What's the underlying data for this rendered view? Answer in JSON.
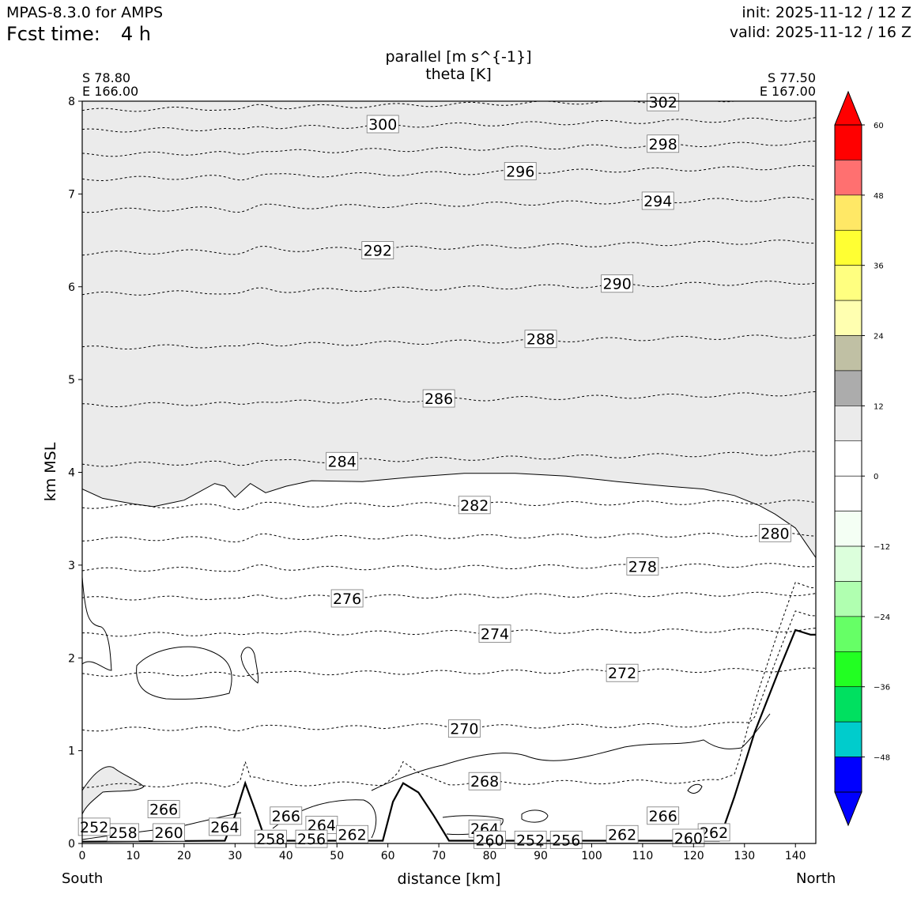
{
  "header": {
    "model": "MPAS-8.3.0 for AMPS",
    "fcst_label": "Fcst time:",
    "fcst_value": "4 h",
    "init": "init: 2025-11-12 / 12 Z",
    "valid": "valid: 2025-11-12 / 16 Z"
  },
  "endpoints": {
    "left_lat": "S 78.80",
    "left_lon": "E 166.00",
    "right_lat": "S 77.50",
    "right_lon": "E 167.00",
    "left_dir": "South",
    "right_dir": "North"
  },
  "chart_data": {
    "type": "contour",
    "title": "parallel [m s^{-1}]",
    "subtitle": "theta [K]",
    "xlabel": "distance [km]",
    "ylabel": "km MSL",
    "xlim": [
      0,
      144
    ],
    "ylim": [
      0,
      8
    ],
    "x_ticks": [
      0,
      10,
      20,
      30,
      40,
      50,
      60,
      70,
      80,
      90,
      100,
      110,
      120,
      130,
      140
    ],
    "y_ticks": [
      0,
      1,
      2,
      3,
      4,
      5,
      6,
      7,
      8
    ],
    "shaded_field": "parallel wind",
    "shaded_color": "#ebebeb",
    "terrain_km": [
      [
        0,
        0.02
      ],
      [
        28,
        0.03
      ],
      [
        30,
        0.3
      ],
      [
        32,
        0.65
      ],
      [
        34,
        0.35
      ],
      [
        36,
        0.03
      ],
      [
        59,
        0.03
      ],
      [
        61,
        0.45
      ],
      [
        63,
        0.65
      ],
      [
        66,
        0.55
      ],
      [
        69,
        0.3
      ],
      [
        72,
        0.03
      ],
      [
        125,
        0.03
      ],
      [
        128,
        0.5
      ],
      [
        132,
        1.2
      ],
      [
        137,
        1.9
      ],
      [
        140,
        2.3
      ],
      [
        143,
        2.25
      ]
    ],
    "zero_wind_boundary_km": [
      [
        0,
        3.82
      ],
      [
        4,
        3.72
      ],
      [
        10,
        3.66
      ],
      [
        14,
        3.63
      ],
      [
        20,
        3.7
      ],
      [
        26,
        3.88
      ],
      [
        28,
        3.85
      ],
      [
        30,
        3.73
      ],
      [
        33,
        3.88
      ],
      [
        36,
        3.78
      ],
      [
        40,
        3.85
      ],
      [
        45,
        3.91
      ],
      [
        55,
        3.9
      ],
      [
        65,
        3.95
      ],
      [
        75,
        3.99
      ],
      [
        85,
        3.99
      ],
      [
        95,
        3.96
      ],
      [
        105,
        3.9
      ],
      [
        115,
        3.85
      ],
      [
        122,
        3.82
      ],
      [
        128,
        3.75
      ],
      [
        133,
        3.64
      ],
      [
        136,
        3.55
      ],
      [
        140,
        3.4
      ],
      [
        144,
        3.08
      ]
    ],
    "theta_levels": [
      {
        "value": 302,
        "z": 7.9,
        "label_x": 114
      },
      {
        "value": 300,
        "z": 7.68,
        "label_x": 59
      },
      {
        "value": 298,
        "z": 7.42,
        "label_x": 114
      },
      {
        "value": 296,
        "z": 7.16,
        "label_x": 86
      },
      {
        "value": 294,
        "z": 6.82,
        "label_x": 113
      },
      {
        "value": 292,
        "z": 6.36,
        "label_x": 58
      },
      {
        "value": 290,
        "z": 5.92,
        "label_x": 105
      },
      {
        "value": 288,
        "z": 5.34,
        "label_x": 90
      },
      {
        "value": 286,
        "z": 4.72,
        "label_x": 70
      },
      {
        "value": 284,
        "z": 4.08,
        "label_x": 51
      },
      {
        "value": 282,
        "z": 3.63,
        "label_x": 77
      },
      {
        "value": 280,
        "z": 3.28,
        "label_x": 136
      },
      {
        "value": 278,
        "z": 2.95,
        "label_x": 110
      },
      {
        "value": 276,
        "z": 2.64,
        "label_x": 52
      },
      {
        "value": 274,
        "z": 2.25,
        "label_x": 81
      },
      {
        "value": 272,
        "z": 1.82,
        "label_x": 106
      },
      {
        "value": 270,
        "z": 1.23,
        "label_x": 75
      },
      {
        "value": 268,
        "z": 0.62,
        "label_x": 79
      }
    ],
    "low_labels": [
      {
        "value": "266",
        "x": 16,
        "z": 0.37
      },
      {
        "value": "266",
        "x": 40,
        "z": 0.3
      },
      {
        "value": "266",
        "x": 114,
        "z": 0.3
      },
      {
        "value": "264",
        "x": 28,
        "z": 0.18
      },
      {
        "value": "264",
        "x": 47,
        "z": 0.2
      },
      {
        "value": "264",
        "x": 79,
        "z": 0.16
      },
      {
        "value": "262",
        "x": 53,
        "z": 0.1
      },
      {
        "value": "262",
        "x": 106,
        "z": 0.1
      },
      {
        "value": "262",
        "x": 124,
        "z": 0.12
      },
      {
        "value": "260",
        "x": 17,
        "z": 0.12
      },
      {
        "value": "260",
        "x": 80,
        "z": 0.04
      },
      {
        "value": "260",
        "x": 119,
        "z": 0.06
      },
      {
        "value": "258",
        "x": 8,
        "z": 0.12
      },
      {
        "value": "258",
        "x": 37,
        "z": 0.05
      },
      {
        "value": "256",
        "x": 45,
        "z": 0.05
      },
      {
        "value": "256",
        "x": 95,
        "z": 0.04
      },
      {
        "value": "252",
        "x": 88,
        "z": 0.04
      },
      {
        "value": "252",
        "x": 0.8,
        "z": 0.18
      }
    ]
  },
  "colorbar": {
    "ticks": [
      "60",
      "48",
      "36",
      "24",
      "12",
      "0",
      "−12",
      "−24",
      "−36",
      "−48"
    ],
    "tick_values": [
      60,
      48,
      36,
      24,
      12,
      0,
      -12,
      -24,
      -36,
      -48
    ],
    "colors": [
      "#ff0000",
      "#ff7070",
      "#ffe866",
      "#ffff33",
      "#ffff80",
      "#ffffb0",
      "#c0c0a4",
      "#acacac",
      "#ebebeb",
      "#ffffff",
      "#ffffff",
      "#f4fff4",
      "#dcffdc",
      "#b0ffb0",
      "#66ff66",
      "#22ff22",
      "#00e060",
      "#00cccc",
      "#0000ff"
    ],
    "over_color": "#ff0000",
    "under_color": "#0000ff"
  }
}
